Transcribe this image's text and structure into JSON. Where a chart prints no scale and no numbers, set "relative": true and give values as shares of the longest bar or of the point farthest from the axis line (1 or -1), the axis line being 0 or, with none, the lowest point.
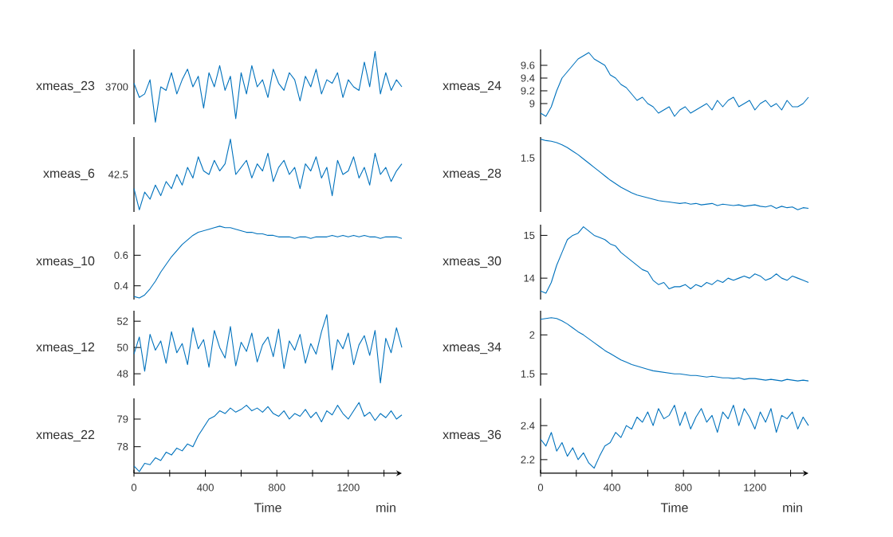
{
  "chart_data": [
    {
      "type": "line",
      "ylabel": "xmeas_23",
      "relative": true,
      "tick_labels": false,
      "annotations": [
        "3700"
      ],
      "x": [
        0,
        30,
        60,
        90,
        120,
        150,
        180,
        210,
        240,
        270,
        300,
        330,
        360,
        390,
        420,
        450,
        480,
        510,
        540,
        570,
        600,
        630,
        660,
        690,
        720,
        750,
        780,
        810,
        840,
        870,
        900,
        930,
        960,
        990,
        1020,
        1050,
        1080,
        1110,
        1140,
        1170,
        1200,
        1230,
        1260,
        1290,
        1320,
        1350,
        1380,
        1410,
        1440,
        1470,
        1500
      ],
      "series": [
        {
          "color": "#0072bd",
          "values": [
            0.55,
            0.35,
            0.4,
            0.6,
            0.0,
            0.5,
            0.45,
            0.7,
            0.4,
            0.6,
            0.75,
            0.5,
            0.65,
            0.2,
            0.7,
            0.5,
            0.8,
            0.45,
            0.65,
            0.05,
            0.7,
            0.4,
            0.8,
            0.5,
            0.6,
            0.35,
            0.75,
            0.55,
            0.45,
            0.7,
            0.6,
            0.3,
            0.65,
            0.5,
            0.75,
            0.4,
            0.6,
            0.55,
            0.7,
            0.35,
            0.6,
            0.5,
            0.45,
            0.85,
            0.5,
            1.0,
            0.4,
            0.7,
            0.45,
            0.6,
            0.5
          ]
        }
      ]
    },
    {
      "type": "line",
      "ylabel": "xmeas_24",
      "tick_labels": "y",
      "ylim": [
        8.675,
        9.85
      ],
      "yticks": [
        9,
        9.2,
        9.4,
        9.6
      ],
      "x": [
        0,
        30,
        60,
        90,
        120,
        150,
        180,
        210,
        240,
        270,
        300,
        330,
        360,
        390,
        420,
        450,
        480,
        510,
        540,
        570,
        600,
        630,
        660,
        690,
        720,
        750,
        780,
        810,
        840,
        870,
        900,
        930,
        960,
        990,
        1020,
        1050,
        1080,
        1110,
        1140,
        1170,
        1200,
        1230,
        1260,
        1290,
        1320,
        1350,
        1380,
        1410,
        1440,
        1470,
        1500
      ],
      "series": [
        {
          "color": "#0072bd",
          "values": [
            8.85,
            8.8,
            8.95,
            9.2,
            9.4,
            9.5,
            9.6,
            9.7,
            9.75,
            9.8,
            9.7,
            9.65,
            9.6,
            9.45,
            9.4,
            9.3,
            9.25,
            9.15,
            9.05,
            9.1,
            9.0,
            8.95,
            8.85,
            8.9,
            8.95,
            8.8,
            8.9,
            8.95,
            8.85,
            8.9,
            8.95,
            9.0,
            8.9,
            9.05,
            8.95,
            9.05,
            9.1,
            8.95,
            9.0,
            9.05,
            8.9,
            9.0,
            9.05,
            8.95,
            9.0,
            8.9,
            9.05,
            8.95,
            8.95,
            9.0,
            9.1
          ]
        }
      ]
    },
    {
      "type": "line",
      "ylabel": "xmeas_6",
      "relative": true,
      "tick_labels": false,
      "annotations": [
        "42.5"
      ],
      "x": [
        0,
        30,
        60,
        90,
        120,
        150,
        180,
        210,
        240,
        270,
        300,
        330,
        360,
        390,
        420,
        450,
        480,
        510,
        540,
        570,
        600,
        630,
        660,
        690,
        720,
        750,
        780,
        810,
        840,
        870,
        900,
        930,
        960,
        990,
        1020,
        1050,
        1080,
        1110,
        1140,
        1170,
        1200,
        1230,
        1260,
        1290,
        1320,
        1350,
        1380,
        1410,
        1440,
        1470,
        1500
      ],
      "series": [
        {
          "color": "#0072bd",
          "values": [
            0.3,
            0.0,
            0.25,
            0.15,
            0.35,
            0.2,
            0.4,
            0.3,
            0.5,
            0.35,
            0.6,
            0.45,
            0.75,
            0.55,
            0.5,
            0.7,
            0.55,
            0.65,
            1.0,
            0.5,
            0.6,
            0.7,
            0.45,
            0.65,
            0.55,
            0.8,
            0.4,
            0.6,
            0.7,
            0.5,
            0.6,
            0.3,
            0.65,
            0.55,
            0.75,
            0.45,
            0.6,
            0.2,
            0.7,
            0.5,
            0.55,
            0.75,
            0.45,
            0.6,
            0.35,
            0.8,
            0.5,
            0.6,
            0.4,
            0.55,
            0.65
          ]
        }
      ]
    },
    {
      "type": "line",
      "ylabel": "xmeas_28",
      "relative": true,
      "tick_labels": false,
      "annotations": [
        "1.5"
      ],
      "x": [
        0,
        30,
        60,
        90,
        120,
        150,
        180,
        210,
        240,
        270,
        300,
        330,
        360,
        390,
        420,
        450,
        480,
        510,
        540,
        570,
        600,
        630,
        660,
        690,
        720,
        750,
        780,
        810,
        840,
        870,
        900,
        930,
        960,
        990,
        1020,
        1050,
        1080,
        1110,
        1140,
        1170,
        1200,
        1230,
        1260,
        1290,
        1320,
        1350,
        1380,
        1410,
        1440,
        1470,
        1500
      ],
      "series": [
        {
          "color": "#0072bd",
          "values": [
            1.0,
            0.98,
            0.97,
            0.95,
            0.92,
            0.88,
            0.83,
            0.78,
            0.72,
            0.66,
            0.6,
            0.54,
            0.48,
            0.42,
            0.37,
            0.32,
            0.28,
            0.24,
            0.21,
            0.19,
            0.17,
            0.15,
            0.13,
            0.12,
            0.11,
            0.1,
            0.09,
            0.1,
            0.08,
            0.09,
            0.07,
            0.08,
            0.09,
            0.06,
            0.08,
            0.07,
            0.06,
            0.07,
            0.05,
            0.06,
            0.07,
            0.05,
            0.04,
            0.06,
            0.02,
            0.05,
            0.03,
            0.04,
            0.0,
            0.03,
            0.02
          ]
        }
      ]
    },
    {
      "type": "line",
      "ylabel": "xmeas_10",
      "tick_labels": "y",
      "ylim": [
        0.31,
        0.8
      ],
      "yticks": [
        0.4,
        0.6
      ],
      "x": [
        0,
        30,
        60,
        90,
        120,
        150,
        180,
        210,
        240,
        270,
        300,
        330,
        360,
        390,
        420,
        450,
        480,
        510,
        540,
        570,
        600,
        630,
        660,
        690,
        720,
        750,
        780,
        810,
        840,
        870,
        900,
        930,
        960,
        990,
        1020,
        1050,
        1080,
        1110,
        1140,
        1170,
        1200,
        1230,
        1260,
        1290,
        1320,
        1350,
        1380,
        1410,
        1440,
        1470,
        1500
      ],
      "series": [
        {
          "color": "#0072bd",
          "values": [
            0.33,
            0.32,
            0.34,
            0.38,
            0.43,
            0.49,
            0.54,
            0.59,
            0.63,
            0.67,
            0.7,
            0.73,
            0.75,
            0.76,
            0.77,
            0.78,
            0.79,
            0.78,
            0.78,
            0.77,
            0.76,
            0.75,
            0.75,
            0.74,
            0.74,
            0.73,
            0.73,
            0.72,
            0.72,
            0.72,
            0.71,
            0.72,
            0.72,
            0.71,
            0.72,
            0.72,
            0.72,
            0.73,
            0.72,
            0.73,
            0.72,
            0.73,
            0.72,
            0.73,
            0.72,
            0.72,
            0.71,
            0.72,
            0.72,
            0.72,
            0.71
          ]
        }
      ]
    },
    {
      "type": "line",
      "ylabel": "xmeas_30",
      "tick_labels": "y",
      "ylim": [
        13.5,
        15.25
      ],
      "yticks": [
        14,
        15
      ],
      "x": [
        0,
        30,
        60,
        90,
        120,
        150,
        180,
        210,
        240,
        270,
        300,
        330,
        360,
        390,
        420,
        450,
        480,
        510,
        540,
        570,
        600,
        630,
        660,
        690,
        720,
        750,
        780,
        810,
        840,
        870,
        900,
        930,
        960,
        990,
        1020,
        1050,
        1080,
        1110,
        1140,
        1170,
        1200,
        1230,
        1260,
        1290,
        1320,
        1350,
        1380,
        1410,
        1440,
        1470,
        1500
      ],
      "series": [
        {
          "color": "#0072bd",
          "values": [
            13.7,
            13.65,
            13.9,
            14.3,
            14.6,
            14.9,
            15.0,
            15.05,
            15.2,
            15.1,
            15.0,
            14.95,
            14.9,
            14.8,
            14.75,
            14.6,
            14.5,
            14.4,
            14.3,
            14.2,
            14.15,
            13.95,
            13.85,
            13.9,
            13.75,
            13.8,
            13.8,
            13.85,
            13.75,
            13.85,
            13.8,
            13.9,
            13.85,
            13.95,
            13.9,
            14.0,
            13.95,
            14.0,
            14.05,
            14.0,
            14.1,
            14.05,
            13.95,
            14.0,
            14.1,
            14.0,
            13.95,
            14.05,
            14.0,
            13.95,
            13.9
          ]
        }
      ]
    },
    {
      "type": "line",
      "ylabel": "xmeas_12",
      "tick_labels": "y",
      "ylim": [
        47.1,
        52.8
      ],
      "yticks": [
        48,
        50,
        52
      ],
      "x": [
        0,
        30,
        60,
        90,
        120,
        150,
        180,
        210,
        240,
        270,
        300,
        330,
        360,
        390,
        420,
        450,
        480,
        510,
        540,
        570,
        600,
        630,
        660,
        690,
        720,
        750,
        780,
        810,
        840,
        870,
        900,
        930,
        960,
        990,
        1020,
        1050,
        1080,
        1110,
        1140,
        1170,
        1200,
        1230,
        1260,
        1290,
        1320,
        1350,
        1380,
        1410,
        1440,
        1470,
        1500
      ],
      "series": [
        {
          "color": "#0072bd",
          "values": [
            49.5,
            50.8,
            48.2,
            51.0,
            49.8,
            50.5,
            48.8,
            51.2,
            49.6,
            50.3,
            48.7,
            51.5,
            49.9,
            50.6,
            48.5,
            51.3,
            50.0,
            49.2,
            51.6,
            48.6,
            50.4,
            49.7,
            51.1,
            48.9,
            50.2,
            50.8,
            49.3,
            51.4,
            48.4,
            50.5,
            49.8,
            51.0,
            48.8,
            50.3,
            49.5,
            51.2,
            52.5,
            48.3,
            50.6,
            49.9,
            51.1,
            48.7,
            50.2,
            50.9,
            49.4,
            51.3,
            47.3,
            50.7,
            49.6,
            51.5,
            50.0
          ]
        }
      ]
    },
    {
      "type": "line",
      "ylabel": "xmeas_34",
      "tick_labels": "y",
      "ylim": [
        1.35,
        2.31
      ],
      "yticks": [
        1.5,
        2
      ],
      "x": [
        0,
        30,
        60,
        90,
        120,
        150,
        180,
        210,
        240,
        270,
        300,
        330,
        360,
        390,
        420,
        450,
        480,
        510,
        540,
        570,
        600,
        630,
        660,
        690,
        720,
        750,
        780,
        810,
        840,
        870,
        900,
        930,
        960,
        990,
        1020,
        1050,
        1080,
        1110,
        1140,
        1170,
        1200,
        1230,
        1260,
        1290,
        1320,
        1350,
        1380,
        1410,
        1440,
        1470,
        1500
      ],
      "series": [
        {
          "color": "#0072bd",
          "values": [
            2.2,
            2.21,
            2.22,
            2.21,
            2.18,
            2.14,
            2.09,
            2.04,
            2.0,
            1.95,
            1.9,
            1.85,
            1.8,
            1.76,
            1.72,
            1.68,
            1.65,
            1.62,
            1.6,
            1.58,
            1.56,
            1.54,
            1.53,
            1.52,
            1.51,
            1.5,
            1.5,
            1.49,
            1.48,
            1.48,
            1.47,
            1.46,
            1.47,
            1.46,
            1.45,
            1.45,
            1.44,
            1.45,
            1.43,
            1.44,
            1.44,
            1.43,
            1.42,
            1.43,
            1.42,
            1.41,
            1.43,
            1.42,
            1.41,
            1.42,
            1.41
          ]
        }
      ]
    },
    {
      "type": "line",
      "ylabel": "xmeas_22",
      "xlabel": "Time",
      "annotations": [
        "min"
      ],
      "xlim": [
        0,
        1500
      ],
      "xticks": [
        0,
        {
          "value": 200,
          "label": null
        },
        400,
        {
          "value": 600,
          "label": null
        },
        800,
        {
          "value": 1000,
          "label": null
        },
        1200,
        {
          "value": 1400,
          "label": null
        }
      ],
      "ylim": [
        77.04,
        79.75
      ],
      "yticks": [
        78,
        79
      ],
      "x": [
        0,
        30,
        60,
        90,
        120,
        150,
        180,
        210,
        240,
        270,
        300,
        330,
        360,
        390,
        420,
        450,
        480,
        510,
        540,
        570,
        600,
        630,
        660,
        690,
        720,
        750,
        780,
        810,
        840,
        870,
        900,
        930,
        960,
        990,
        1020,
        1050,
        1080,
        1110,
        1140,
        1170,
        1200,
        1230,
        1260,
        1290,
        1320,
        1350,
        1380,
        1410,
        1440,
        1470,
        1500
      ],
      "series": [
        {
          "color": "#0072bd",
          "values": [
            77.3,
            77.1,
            77.4,
            77.35,
            77.6,
            77.5,
            77.8,
            77.7,
            77.95,
            77.85,
            78.1,
            78.0,
            78.4,
            78.7,
            79.0,
            79.1,
            79.3,
            79.2,
            79.4,
            79.25,
            79.35,
            79.5,
            79.3,
            79.4,
            79.25,
            79.45,
            79.2,
            79.1,
            79.3,
            79.0,
            79.2,
            79.1,
            79.35,
            79.05,
            79.25,
            78.9,
            79.3,
            79.15,
            79.5,
            79.2,
            79.0,
            79.3,
            79.6,
            79.1,
            79.25,
            78.95,
            79.2,
            79.05,
            79.3,
            79.0,
            79.15
          ]
        }
      ]
    },
    {
      "type": "line",
      "ylabel": "xmeas_36",
      "xlabel": "Time",
      "annotations": [
        "min"
      ],
      "xlim": [
        0,
        1500
      ],
      "xticks": [
        0,
        {
          "value": 200,
          "label": null
        },
        400,
        {
          "value": 600,
          "label": null
        },
        800,
        {
          "value": 1000,
          "label": null
        },
        1200,
        {
          "value": 1400,
          "label": null
        }
      ],
      "ylim": [
        2.12,
        2.56
      ],
      "yticks": [
        2.2,
        2.4
      ],
      "x": [
        0,
        30,
        60,
        90,
        120,
        150,
        180,
        210,
        240,
        270,
        300,
        330,
        360,
        390,
        420,
        450,
        480,
        510,
        540,
        570,
        600,
        630,
        660,
        690,
        720,
        750,
        780,
        810,
        840,
        870,
        900,
        930,
        960,
        990,
        1020,
        1050,
        1080,
        1110,
        1140,
        1170,
        1200,
        1230,
        1260,
        1290,
        1320,
        1350,
        1380,
        1410,
        1440,
        1470,
        1500
      ],
      "series": [
        {
          "color": "#0072bd",
          "values": [
            2.32,
            2.28,
            2.36,
            2.25,
            2.3,
            2.22,
            2.27,
            2.2,
            2.24,
            2.18,
            2.15,
            2.22,
            2.28,
            2.3,
            2.36,
            2.33,
            2.4,
            2.38,
            2.45,
            2.42,
            2.48,
            2.4,
            2.5,
            2.44,
            2.46,
            2.52,
            2.4,
            2.48,
            2.38,
            2.45,
            2.5,
            2.42,
            2.46,
            2.36,
            2.48,
            2.44,
            2.52,
            2.4,
            2.5,
            2.45,
            2.38,
            2.48,
            2.42,
            2.5,
            2.36,
            2.46,
            2.44,
            2.48,
            2.38,
            2.45,
            2.4
          ]
        }
      ]
    }
  ]
}
